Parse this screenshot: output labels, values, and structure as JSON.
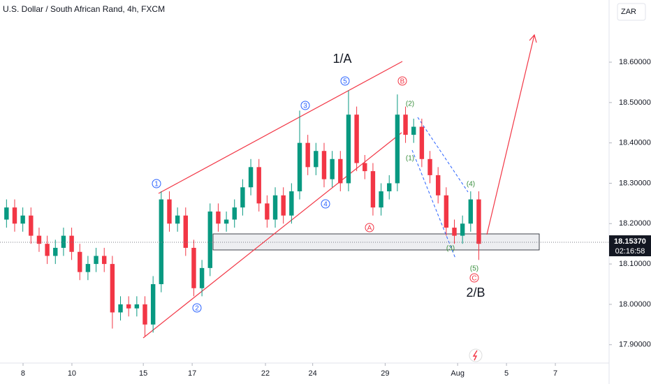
{
  "chart_data": {
    "type": "candlestick",
    "title": "U.S. Dollar / South African Rand, 4h, FXCM",
    "currency": "ZAR",
    "up_color": "#089981",
    "down_color": "#f23645",
    "candles": [
      [
        18.21,
        18.26,
        18.19,
        18.24
      ],
      [
        18.24,
        18.26,
        18.18,
        18.2
      ],
      [
        18.2,
        18.24,
        18.18,
        18.22
      ],
      [
        18.22,
        18.24,
        18.15,
        18.17
      ],
      [
        18.17,
        18.19,
        18.13,
        18.15
      ],
      [
        18.15,
        18.17,
        18.1,
        18.12
      ],
      [
        18.12,
        18.16,
        18.1,
        18.14
      ],
      [
        18.14,
        18.19,
        18.12,
        18.17
      ],
      [
        18.17,
        18.19,
        18.11,
        18.13
      ],
      [
        18.13,
        18.15,
        18.06,
        18.08
      ],
      [
        18.08,
        18.12,
        18.06,
        18.1
      ],
      [
        18.1,
        18.14,
        18.08,
        18.12
      ],
      [
        18.12,
        18.14,
        18.08,
        18.1
      ],
      [
        18.1,
        18.12,
        17.94,
        17.98
      ],
      [
        17.98,
        18.02,
        17.96,
        18.0
      ],
      [
        18.0,
        18.02,
        17.97,
        17.99
      ],
      [
        17.99,
        18.02,
        17.97,
        18.0
      ],
      [
        18.0,
        18.02,
        17.92,
        17.95
      ],
      [
        17.95,
        18.07,
        17.93,
        18.05
      ],
      [
        18.05,
        18.28,
        18.03,
        18.26
      ],
      [
        18.26,
        18.28,
        18.18,
        18.2
      ],
      [
        18.2,
        18.24,
        18.18,
        18.22
      ],
      [
        18.22,
        18.24,
        18.12,
        18.14
      ],
      [
        18.14,
        18.16,
        18.02,
        18.04
      ],
      [
        18.04,
        18.11,
        18.02,
        18.09
      ],
      [
        18.09,
        18.25,
        18.07,
        18.23
      ],
      [
        18.23,
        18.25,
        18.18,
        18.2
      ],
      [
        18.2,
        18.23,
        18.18,
        18.21
      ],
      [
        18.21,
        18.26,
        18.19,
        18.24
      ],
      [
        18.24,
        18.31,
        18.22,
        18.29
      ],
      [
        18.29,
        18.36,
        18.27,
        18.34
      ],
      [
        18.34,
        18.36,
        18.23,
        18.25
      ],
      [
        18.25,
        18.27,
        18.19,
        18.21
      ],
      [
        18.21,
        18.29,
        18.19,
        18.27
      ],
      [
        18.27,
        18.29,
        18.2,
        18.22
      ],
      [
        18.22,
        18.3,
        18.2,
        18.28
      ],
      [
        18.28,
        18.48,
        18.26,
        18.4
      ],
      [
        18.4,
        18.42,
        18.32,
        18.34
      ],
      [
        18.34,
        18.4,
        18.32,
        18.38
      ],
      [
        18.38,
        18.4,
        18.29,
        18.31
      ],
      [
        18.31,
        18.38,
        18.29,
        18.36
      ],
      [
        18.36,
        18.38,
        18.28,
        18.3
      ],
      [
        18.3,
        18.53,
        18.28,
        18.47
      ],
      [
        18.47,
        18.49,
        18.33,
        18.35
      ],
      [
        18.35,
        18.37,
        18.31,
        18.33
      ],
      [
        18.33,
        18.35,
        18.22,
        18.24
      ],
      [
        18.24,
        18.3,
        18.22,
        18.28
      ],
      [
        18.28,
        18.32,
        18.26,
        18.3
      ],
      [
        18.3,
        18.52,
        18.28,
        18.47
      ],
      [
        18.47,
        18.49,
        18.4,
        18.42
      ],
      [
        18.42,
        18.46,
        18.4,
        18.44
      ],
      [
        18.44,
        18.46,
        18.34,
        18.36
      ],
      [
        18.36,
        18.38,
        18.3,
        18.32
      ],
      [
        18.32,
        18.34,
        18.25,
        18.27
      ],
      [
        18.27,
        18.29,
        18.17,
        18.19
      ],
      [
        18.19,
        18.21,
        18.15,
        18.17
      ],
      [
        18.17,
        18.22,
        18.15,
        18.2
      ],
      [
        18.2,
        18.28,
        18.18,
        18.26
      ],
      [
        18.26,
        18.28,
        18.11,
        18.15
      ]
    ],
    "xlim": [
      -0.8,
      74
    ],
    "xticks": [
      {
        "value": 2.03,
        "label": "8"
      },
      {
        "value": 8.03,
        "label": "10"
      },
      {
        "value": 16.8,
        "label": "15"
      },
      {
        "value": 22.8,
        "label": "17"
      },
      {
        "value": 31.8,
        "label": "22"
      },
      {
        "value": 37.6,
        "label": "24"
      },
      {
        "value": 46.5,
        "label": "29"
      },
      {
        "value": 55.4,
        "label": "Aug"
      },
      {
        "value": 61.4,
        "label": "5"
      },
      {
        "value": 67.4,
        "label": "7"
      }
    ],
    "ylim": [
      17.858,
      18.754
    ],
    "yticks": [
      {
        "value": 17.9,
        "label": "17.90000"
      },
      {
        "value": 18.0,
        "label": "18.00000"
      },
      {
        "value": 18.1,
        "label": "18.10000"
      },
      {
        "value": 18.2,
        "label": "18.20000"
      },
      {
        "value": 18.3,
        "label": "18.30000"
      },
      {
        "value": 18.4,
        "label": "18.40000"
      },
      {
        "value": 18.5,
        "label": "18.50000"
      },
      {
        "value": 18.6,
        "label": "18.60000"
      }
    ],
    "last_price": {
      "value": 18.1537,
      "label": "18.15370"
    },
    "countdown": "02:16:58",
    "annotations": [
      "1/A",
      "2/B",
      "1",
      "2",
      "3",
      "4",
      "5",
      "A",
      "B",
      "C",
      "(1)",
      "(2)",
      "(3)",
      "(4)",
      "(5)"
    ]
  }
}
